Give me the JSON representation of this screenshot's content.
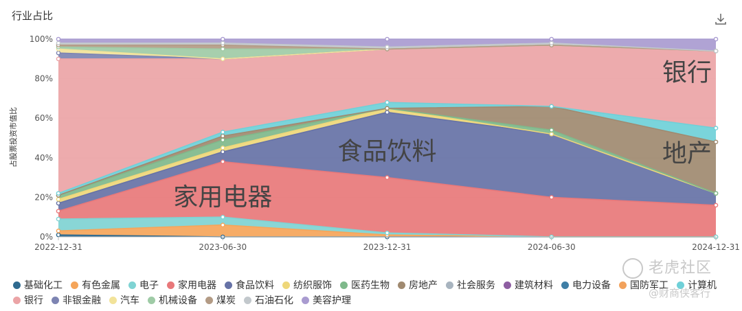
{
  "header": {
    "title": "行业占比",
    "download_icon": "download-icon"
  },
  "watermark": {
    "line1": "老虎社区",
    "line2": "@财商侠客行"
  },
  "chart_data": {
    "type": "area",
    "stacked": true,
    "title": "行业占比",
    "ylabel": "占股票投资市值比",
    "ylim": [
      0,
      100
    ],
    "y_ticks": [
      "0%",
      "20%",
      "40%",
      "60%",
      "80%",
      "100%"
    ],
    "categories": [
      "2022-12-31",
      "2023-06-30",
      "2023-12-31",
      "2024-06-30",
      "2024-12-31"
    ],
    "grid": true,
    "legend_position": "bottom",
    "annotations": [
      {
        "text": "家用电器",
        "category": "2023-06-30",
        "y": 16
      },
      {
        "text": "食品饮料",
        "category": "2023-12-31",
        "y": 39
      },
      {
        "text": "银行",
        "category": "2024-12-31",
        "y": 79
      },
      {
        "text": "地产",
        "category": "2024-12-31",
        "y": 38
      }
    ],
    "series": [
      {
        "name": "基础化工",
        "color": "#2f6a8f",
        "values": [
          1,
          0,
          0,
          0,
          0
        ]
      },
      {
        "name": "有色金属",
        "color": "#f5a55a",
        "values": [
          2,
          6,
          1,
          0,
          0
        ]
      },
      {
        "name": "电子",
        "color": "#7fd3d3",
        "values": [
          6,
          4,
          1,
          0,
          0
        ]
      },
      {
        "name": "家用电器",
        "color": "#e8787a",
        "values": [
          4,
          28,
          28,
          20,
          16
        ]
      },
      {
        "name": "食品饮料",
        "color": "#6672a6",
        "values": [
          4,
          5,
          33,
          32,
          6
        ]
      },
      {
        "name": "纺织服饰",
        "color": "#eed77a",
        "values": [
          2,
          2,
          2,
          0,
          0
        ]
      },
      {
        "name": "医药生物",
        "color": "#7fb98b",
        "values": [
          2,
          4,
          0,
          2,
          0
        ]
      },
      {
        "name": "房地产",
        "color": "#a08a70",
        "values": [
          0,
          2,
          0,
          12,
          26
        ]
      },
      {
        "name": "社会服务",
        "color": "#a8b4bf",
        "values": [
          0,
          0,
          0,
          0,
          0
        ]
      },
      {
        "name": "建筑材料",
        "color": "#8e5ea2",
        "values": [
          0,
          0,
          0,
          0,
          0
        ]
      },
      {
        "name": "电力设备",
        "color": "#3f7fa6",
        "values": [
          0,
          0,
          0,
          0,
          0
        ]
      },
      {
        "name": "国防军工",
        "color": "#f2a25c",
        "values": [
          0,
          0,
          0,
          0,
          0
        ]
      },
      {
        "name": "计算机",
        "color": "#6fd0d8",
        "values": [
          1,
          2,
          3,
          0,
          7
        ]
      },
      {
        "name": "银行",
        "color": "#eba4a6",
        "values": [
          68,
          37,
          27,
          31,
          39
        ]
      },
      {
        "name": "非银金融",
        "color": "#7d84b2",
        "values": [
          3,
          0,
          0,
          0,
          0
        ]
      },
      {
        "name": "汽车",
        "color": "#f2e39a",
        "values": [
          2,
          0,
          0,
          0,
          0
        ]
      },
      {
        "name": "机械设备",
        "color": "#9fcba6",
        "values": [
          1,
          5,
          0,
          0,
          0
        ]
      },
      {
        "name": "煤炭",
        "color": "#b39b85",
        "values": [
          1,
          2,
          0,
          0,
          0
        ]
      },
      {
        "name": "石油石化",
        "color": "#c2c8cc",
        "values": [
          1,
          1,
          1,
          1,
          0
        ]
      },
      {
        "name": "美容护理",
        "color": "#a99bd0",
        "values": [
          2,
          2,
          4,
          2,
          6
        ]
      }
    ]
  }
}
